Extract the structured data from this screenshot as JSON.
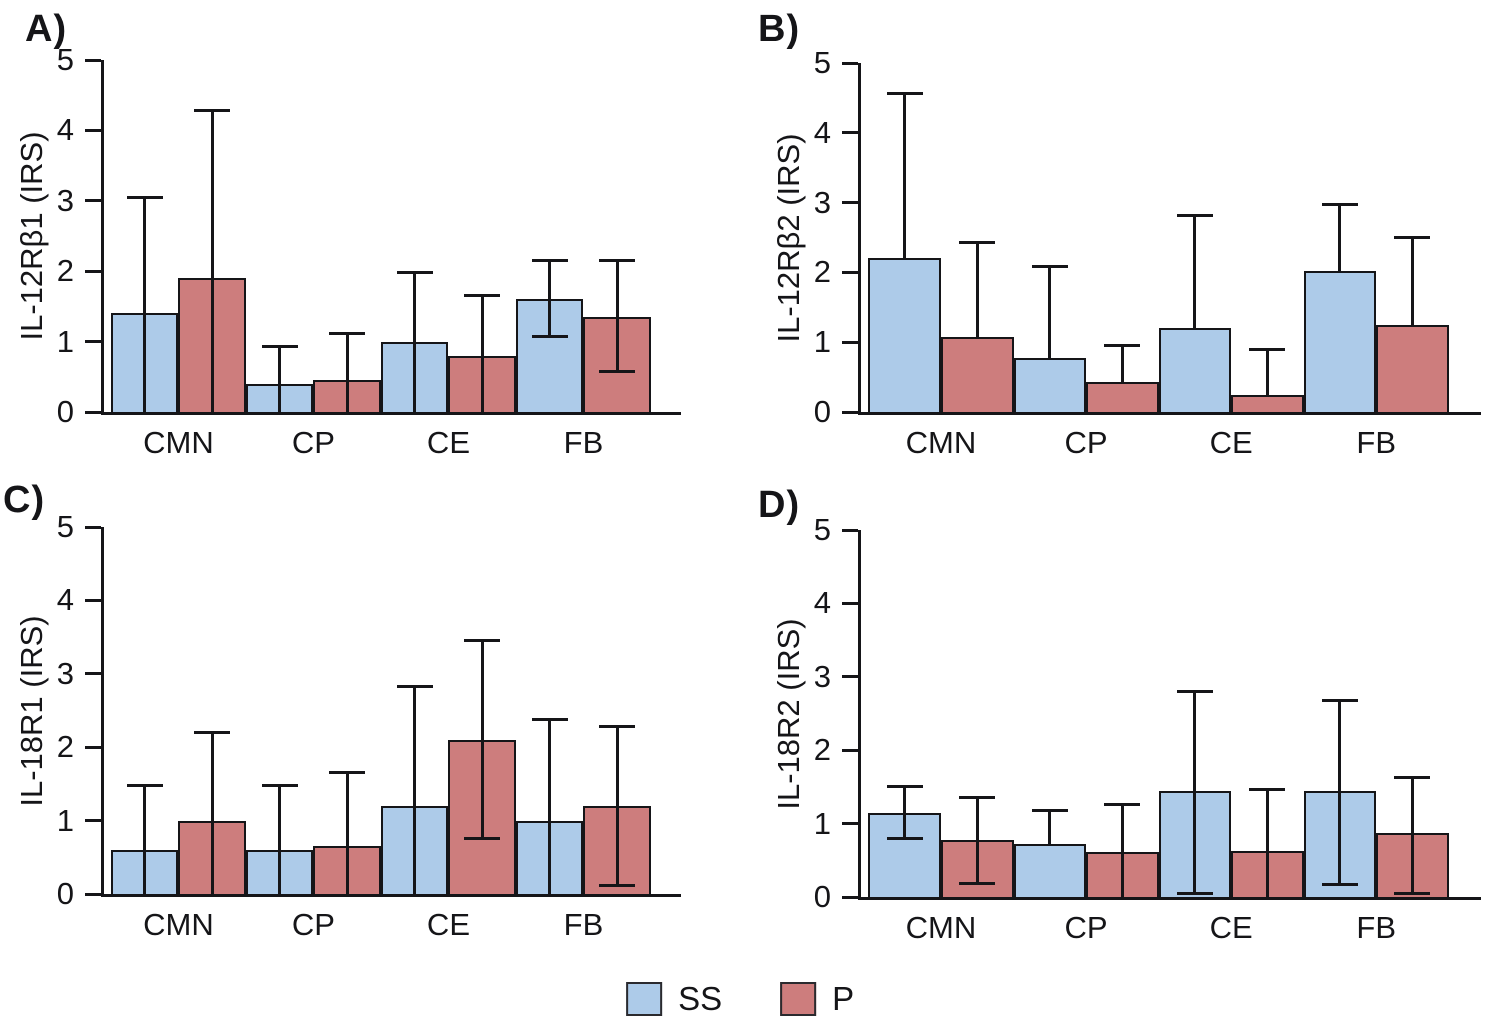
{
  "figure": {
    "background": "#ffffff",
    "stroke_color": "#151518",
    "y_tick_labels": [
      "0",
      "1",
      "2",
      "3",
      "4",
      "5"
    ],
    "categories": [
      "CMN",
      "CP",
      "CE",
      "FB"
    ]
  },
  "legend": {
    "items": [
      {
        "key": "ss",
        "label": "SS",
        "color": "#adcbe9"
      },
      {
        "key": "p",
        "label": "P",
        "color": "#cd7d7d"
      }
    ]
  },
  "chart_data": [
    {
      "type": "bar",
      "panel_label": "A)",
      "ylabel": "IL-12Rβ1 (IRS)",
      "ylim": [
        0,
        5
      ],
      "grid": false,
      "categories": [
        "CMN",
        "CP",
        "CE",
        "FB"
      ],
      "series": [
        {
          "name": "SS",
          "color": "#adcbe9",
          "values": [
            1.4,
            0.4,
            1.0,
            1.6
          ],
          "err_lo": [
            0,
            0,
            0,
            1.05
          ],
          "err_hi": [
            3.07,
            0.95,
            2.0,
            2.17
          ],
          "cap_lo": [
            false,
            false,
            false,
            true
          ]
        },
        {
          "name": "P",
          "color": "#cd7d7d",
          "values": [
            1.9,
            0.45,
            0.8,
            1.35
          ],
          "err_lo": [
            0,
            0,
            0,
            0.55
          ],
          "err_hi": [
            4.3,
            1.13,
            1.68,
            2.17
          ],
          "cap_lo": [
            false,
            false,
            false,
            true
          ]
        }
      ]
    },
    {
      "type": "bar",
      "panel_label": "B)",
      "ylabel": "IL-12Rβ2 (IRS)",
      "ylim": [
        0,
        5
      ],
      "grid": false,
      "categories": [
        "CMN",
        "CP",
        "CE",
        "FB"
      ],
      "series": [
        {
          "name": "SS",
          "color": "#adcbe9",
          "values": [
            2.2,
            0.78,
            1.2,
            2.02
          ],
          "err_lo": [
            2.2,
            0.78,
            1.2,
            2.02
          ],
          "err_hi": [
            4.58,
            2.1,
            2.84,
            3.0
          ],
          "cap_lo": [
            false,
            false,
            false,
            false
          ]
        },
        {
          "name": "P",
          "color": "#cd7d7d",
          "values": [
            1.08,
            0.43,
            0.24,
            1.25
          ],
          "err_lo": [
            1.08,
            0.43,
            0.24,
            1.25
          ],
          "err_hi": [
            2.45,
            0.97,
            0.91,
            2.52
          ],
          "cap_lo": [
            false,
            false,
            false,
            false
          ]
        }
      ]
    },
    {
      "type": "bar",
      "panel_label": "C)",
      "ylabel": "IL-18R1 (IRS)",
      "ylim": [
        0,
        5
      ],
      "grid": false,
      "categories": [
        "CMN",
        "CP",
        "CE",
        "FB"
      ],
      "series": [
        {
          "name": "SS",
          "color": "#adcbe9",
          "values": [
            0.6,
            0.6,
            1.2,
            1.0
          ],
          "err_lo": [
            0,
            0,
            0,
            0
          ],
          "err_hi": [
            1.5,
            1.5,
            2.85,
            2.4
          ],
          "cap_lo": [
            false,
            false,
            false,
            false
          ]
        },
        {
          "name": "P",
          "color": "#cd7d7d",
          "values": [
            1.0,
            0.65,
            2.1,
            1.2
          ],
          "err_lo": [
            0,
            0,
            0.73,
            0.1
          ],
          "err_hi": [
            2.22,
            1.67,
            3.47,
            2.3
          ],
          "cap_lo": [
            false,
            false,
            true,
            true
          ]
        }
      ]
    },
    {
      "type": "bar",
      "panel_label": "D)",
      "ylabel": "IL-18R2 (IRS)",
      "ylim": [
        0,
        5
      ],
      "grid": false,
      "categories": [
        "CMN",
        "CP",
        "CE",
        "FB"
      ],
      "series": [
        {
          "name": "SS",
          "color": "#adcbe9",
          "values": [
            1.15,
            0.72,
            1.45,
            1.45
          ],
          "err_lo": [
            0.78,
            0.72,
            0.03,
            0.15
          ],
          "err_hi": [
            1.52,
            1.2,
            2.82,
            2.7
          ],
          "cap_lo": [
            true,
            false,
            true,
            true
          ]
        },
        {
          "name": "P",
          "color": "#cd7d7d",
          "values": [
            0.78,
            0.62,
            0.63,
            0.87
          ],
          "err_lo": [
            0.17,
            0,
            0,
            0.03
          ],
          "err_hi": [
            1.37,
            1.28,
            1.48,
            1.65
          ],
          "cap_lo": [
            true,
            false,
            false,
            true
          ]
        }
      ]
    }
  ]
}
